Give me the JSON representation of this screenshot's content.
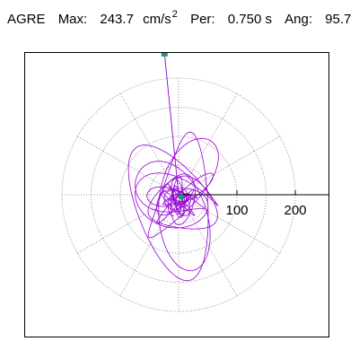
{
  "header": {
    "station": "AGRE",
    "max_label": "Max:",
    "max_value": "243.7",
    "max_unit": "cm/s",
    "max_unit_exp": "2",
    "per_label": "Per:",
    "per_value": "0.750 s",
    "ang_label": "Ang:",
    "ang_value": "95.7"
  },
  "colors": {
    "trace": "#9400d3",
    "marker": "#0f9f6e",
    "grid": "#777777",
    "axis": "#000000"
  },
  "chart_data": {
    "type": "scatter",
    "plot_style": "polar orbit of response acceleration",
    "r_ticks": [
      100,
      200
    ],
    "r_tick_labels": [
      "100",
      "200"
    ],
    "rmax_ring": 200,
    "ring_count": 4,
    "spoke_angles_deg": [
      0,
      30,
      60,
      90,
      120,
      150,
      180,
      210,
      240,
      270,
      300,
      330
    ],
    "grid": true,
    "peak": {
      "r": 243.7,
      "angle_deg": 95.7
    },
    "orbit_seed": 7
  }
}
